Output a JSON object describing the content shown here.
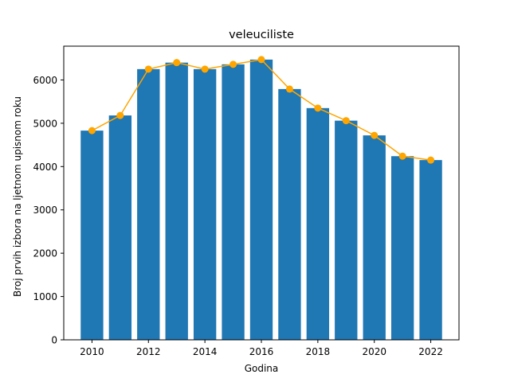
{
  "chart_data": {
    "type": "bar",
    "title": "veleuciliste",
    "xlabel": "Godina",
    "ylabel": "Broj prvih izbora na ljetnom upisnom roku",
    "x": [
      2010,
      2011,
      2012,
      2013,
      2014,
      2015,
      2016,
      2017,
      2018,
      2019,
      2020,
      2021,
      2022
    ],
    "values": [
      4830,
      5180,
      6250,
      6400,
      6250,
      6360,
      6470,
      5790,
      5350,
      5060,
      4720,
      4240,
      4150
    ],
    "xlim": [
      2009,
      2023
    ],
    "ylim": [
      0,
      6780
    ],
    "xticks": [
      2010,
      2012,
      2014,
      2016,
      2018,
      2020,
      2022
    ],
    "yticks": [
      0,
      1000,
      2000,
      3000,
      4000,
      5000,
      6000
    ],
    "grid": false,
    "bar_color": "#1f77b4",
    "line_color": "#ffa500",
    "overlay": "line with circle markers over bars (same values)"
  }
}
